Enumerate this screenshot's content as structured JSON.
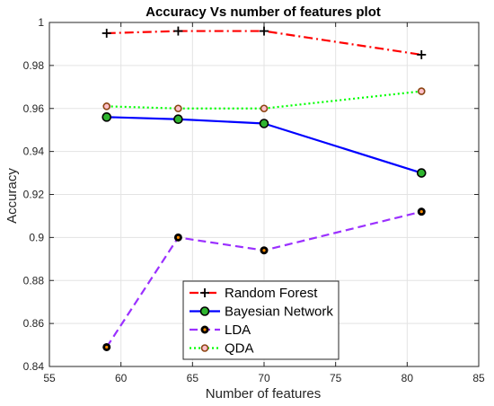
{
  "chart_data": {
    "type": "line",
    "title": "Accuracy Vs number of features plot",
    "xlabel": "Number of features",
    "ylabel": "Accuracy",
    "xlim": [
      55,
      85
    ],
    "ylim": [
      0.84,
      1.0
    ],
    "xticks": [
      55,
      60,
      65,
      70,
      75,
      80,
      85
    ],
    "yticks": [
      0.84,
      0.86,
      0.88,
      0.9,
      0.92,
      0.94,
      0.96,
      0.98,
      1
    ],
    "ytick_labels": [
      "0.84",
      "0.86",
      "0.88",
      "0.9",
      "0.92",
      "0.94",
      "0.96",
      "0.98",
      "1"
    ],
    "grid": true,
    "legend_position": "bottom-center",
    "x": [
      59,
      64,
      70,
      81
    ],
    "series": [
      {
        "name": "Random Forest",
        "values": [
          0.995,
          0.996,
          0.996,
          0.985
        ],
        "color": "#ff0000",
        "marker_color": "#000000",
        "line_style": "dash-dot",
        "marker": "plus"
      },
      {
        "name": "Bayesian Network",
        "values": [
          0.956,
          0.955,
          0.953,
          0.93
        ],
        "color": "#0000ff",
        "marker_color": "#2fb52f",
        "line_style": "solid",
        "marker": "circle"
      },
      {
        "name": "LDA",
        "values": [
          0.849,
          0.9,
          0.894,
          0.912
        ],
        "color": "#9b30ff",
        "marker_color": "#000000",
        "line_style": "dashed",
        "marker": "filled-circle"
      },
      {
        "name": "QDA",
        "values": [
          0.961,
          0.96,
          0.96,
          0.968
        ],
        "color": "#00ff00",
        "marker_color": "#8b4513",
        "line_style": "dotted",
        "marker": "square-dot"
      }
    ]
  }
}
